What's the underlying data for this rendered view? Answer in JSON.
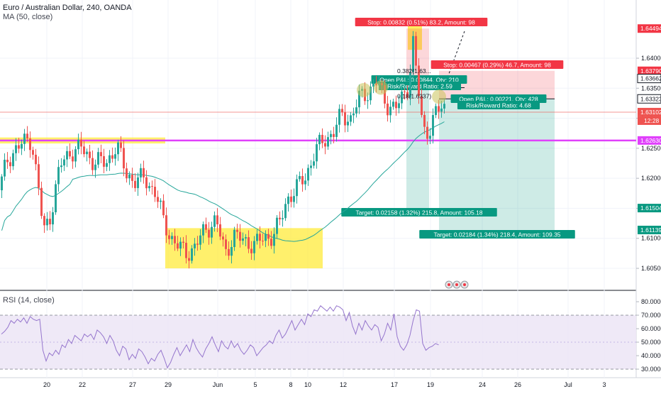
{
  "header": {
    "symbol_line": "Euro / Australian Dollar, 240, OANDA",
    "ma_line": "MA (50, close)",
    "rsi_line": "RSI (14, close)"
  },
  "colors": {
    "up": "#26a69a",
    "down": "#ef5350",
    "ma": "#26a69a",
    "support": "#e040fb",
    "highlight": "#ffeb3b",
    "rsi_line": "#9575cd",
    "rsi_band": "#ede7f6",
    "stop_red": "#f23645",
    "target_green": "#089981"
  },
  "chart_data": [
    {
      "type": "candlestick",
      "title": "Euro / Australian Dollar, 240, OANDA",
      "overlay": "MA (50, close)",
      "ylim": [
        1.6015,
        1.6475
      ],
      "y_ticks": [
        1.605,
        1.61,
        1.615,
        1.62,
        1.625,
        1.63,
        1.635,
        1.64
      ],
      "y_tick_labels": [
        "1.60500",
        "1.61000",
        "1.61500",
        "1.62000",
        "1.62500",
        "1.63000",
        "1.63500",
        "1.64000"
      ],
      "x_ticks": [
        "20",
        "22",
        "27",
        "29",
        "Jun",
        "5",
        "8",
        "10",
        "12",
        "17",
        "19",
        "24",
        "26",
        "Jul",
        "3"
      ],
      "price_tags": [
        {
          "value": 1.64494,
          "label": "1.64494",
          "kind": "stop"
        },
        {
          "value": 1.6379,
          "label": "1.63790",
          "kind": "stop"
        },
        {
          "value": 1.63662,
          "label": "1.63662",
          "kind": "level"
        },
        {
          "value": 1.63323,
          "label": "1.63323",
          "kind": "level"
        },
        {
          "value": 1.63102,
          "label": "1.63102",
          "kind": "last"
        },
        {
          "value": 1.6263,
          "label": "1.62630",
          "kind": "support"
        },
        {
          "value": 1.61504,
          "label": "1.61504",
          "kind": "target"
        },
        {
          "value": 1.61139,
          "label": "1.61139",
          "kind": "target"
        }
      ],
      "last_price_time": "12:28",
      "support_level": 1.6263,
      "horizontal_level": 1.63102,
      "positions": [
        {
          "stop_label": "Stop: 0.00832 (0.51%) 83.2, Amount: 98",
          "target_label": "Target: 0.02158 (1.32%) 215.8, Amount: 105.18",
          "pnl_label": "Open P&L: 0.00844, Qty: 210",
          "rr_label": "Risk/Reward Ratio: 2.59"
        },
        {
          "stop_label": "Stop: 0.00467 (0.29%) 46.7, Amount: 98",
          "target_label": "Target: 0.02184 (1.34%) 218.4, Amount: 109.35",
          "pnl_label": "Open P&L: 0.00221, Qty: 428",
          "rr_label": "Risk/Reward Ratio: 4.68"
        }
      ],
      "fib_labels": [
        "0.382(1.63...",
        "0.18(1.6337)"
      ]
    },
    {
      "type": "line",
      "title": "RSI (14, close)",
      "ylim": [
        25,
        85
      ],
      "y_ticks": [
        30,
        40,
        50,
        60,
        70,
        80
      ],
      "y_tick_labels": [
        "30.0000",
        "40.0000",
        "50.0000",
        "60.0000",
        "70.0000",
        "80.0000"
      ],
      "band": [
        30,
        70
      ],
      "values": [
        56,
        58,
        61,
        66,
        64,
        67,
        65,
        68,
        64,
        69,
        67,
        66,
        67,
        44,
        36,
        42,
        40,
        44,
        41,
        48,
        46,
        52,
        49,
        55,
        53,
        51,
        56,
        54,
        56,
        52,
        59,
        57,
        54,
        49,
        55,
        51,
        44,
        40,
        47,
        45,
        37,
        41,
        38,
        45,
        43,
        39,
        34,
        38,
        36,
        41,
        44,
        38,
        31,
        35,
        41,
        46,
        40,
        44,
        48,
        43,
        52,
        46,
        42,
        39,
        45,
        49,
        54,
        48,
        43,
        51,
        47,
        45,
        51,
        46,
        49,
        44,
        41,
        44,
        48,
        46,
        40,
        43,
        46,
        48,
        51,
        49,
        55,
        59,
        53,
        56,
        61,
        66,
        59,
        63,
        67,
        63,
        71,
        69,
        74,
        73,
        77,
        75,
        73,
        76,
        73,
        77,
        76,
        74,
        66,
        72,
        62,
        56,
        64,
        59,
        66,
        62,
        59,
        63,
        61,
        51,
        56,
        64,
        59,
        71,
        54,
        47,
        44,
        48,
        55,
        66,
        74,
        73,
        49,
        44,
        46,
        47,
        49,
        48
      ]
    }
  ]
}
